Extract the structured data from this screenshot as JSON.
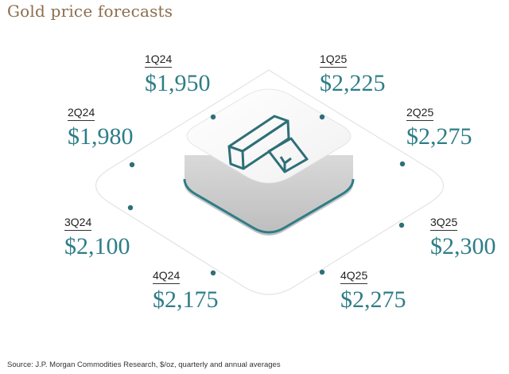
{
  "title": "Gold price forecasts",
  "source": "Source: J.P. Morgan Commodities Research, $/oz, quarterly and annual averages",
  "colors": {
    "teal": "#2e7d87",
    "title": "#8c6e4d"
  },
  "icon": "gold-bars-icon",
  "chart_data": {
    "type": "diagram",
    "unit": "$/oz",
    "points": [
      {
        "quarter": "1Q24",
        "value": "$1,950"
      },
      {
        "quarter": "2Q24",
        "value": "$1,980"
      },
      {
        "quarter": "3Q24",
        "value": "$2,100"
      },
      {
        "quarter": "4Q24",
        "value": "$2,175"
      },
      {
        "quarter": "1Q25",
        "value": "$2,225"
      },
      {
        "quarter": "2Q25",
        "value": "$2,275"
      },
      {
        "quarter": "3Q25",
        "value": "$2,300"
      },
      {
        "quarter": "4Q25",
        "value": "$2,275"
      }
    ]
  }
}
